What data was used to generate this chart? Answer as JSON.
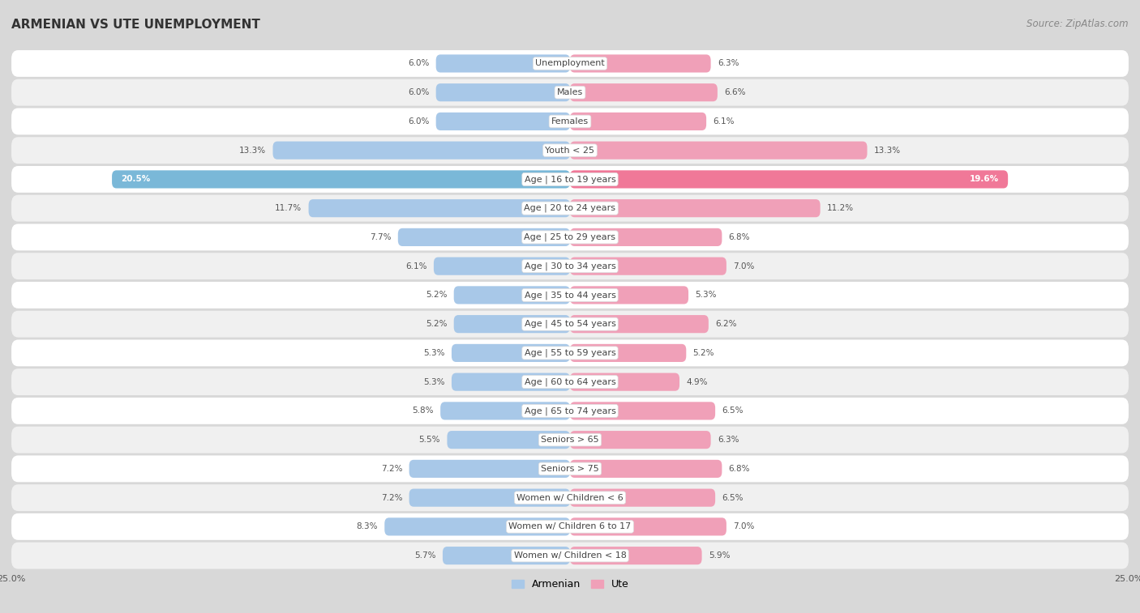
{
  "title": "ARMENIAN VS UTE UNEMPLOYMENT",
  "source": "Source: ZipAtlas.com",
  "categories": [
    "Unemployment",
    "Males",
    "Females",
    "Youth < 25",
    "Age | 16 to 19 years",
    "Age | 20 to 24 years",
    "Age | 25 to 29 years",
    "Age | 30 to 34 years",
    "Age | 35 to 44 years",
    "Age | 45 to 54 years",
    "Age | 55 to 59 years",
    "Age | 60 to 64 years",
    "Age | 65 to 74 years",
    "Seniors > 65",
    "Seniors > 75",
    "Women w/ Children < 6",
    "Women w/ Children 6 to 17",
    "Women w/ Children < 18"
  ],
  "armenian": [
    6.0,
    6.0,
    6.0,
    13.3,
    20.5,
    11.7,
    7.7,
    6.1,
    5.2,
    5.2,
    5.3,
    5.3,
    5.8,
    5.5,
    7.2,
    7.2,
    8.3,
    5.7
  ],
  "ute": [
    6.3,
    6.6,
    6.1,
    13.3,
    19.6,
    11.2,
    6.8,
    7.0,
    5.3,
    6.2,
    5.2,
    4.9,
    6.5,
    6.3,
    6.8,
    6.5,
    7.0,
    5.9
  ],
  "armenian_color": "#a8c8e8",
  "ute_color": "#f0a0b8",
  "armenian_highlight": "#6aaed6",
  "ute_highlight": "#f06090",
  "armenian_label": "Armenian",
  "ute_label": "Ute",
  "xlim": 25.0,
  "row_bg_light": "#f5f5f5",
  "row_bg_dark": "#e8e8e8",
  "outer_bg": "#d8d8d8",
  "title_fontsize": 11,
  "source_fontsize": 8.5,
  "label_fontsize": 8,
  "value_fontsize": 7.5,
  "axis_tick_fontsize": 8
}
